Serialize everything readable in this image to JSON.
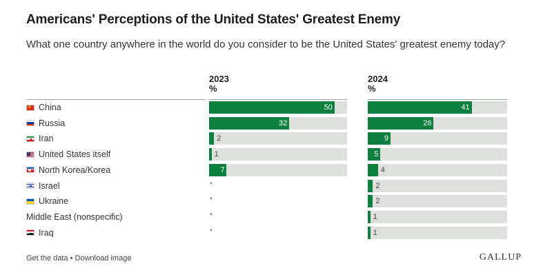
{
  "title": "Americans' Perceptions of the United States' Greatest Enemy",
  "subtitle": "What one country anywhere in the world do you consider to be the United States' greatest enemy today?",
  "columns": [
    {
      "year": "2023",
      "unit": "%"
    },
    {
      "year": "2024",
      "unit": "%"
    }
  ],
  "colors": {
    "bar": "#0d7f3f",
    "track": "#dde0dc"
  },
  "chart_data": {
    "type": "bar",
    "title": "Americans' Perceptions of the United States' Greatest Enemy",
    "categories": [
      "China",
      "Russia",
      "Iran",
      "United States itself",
      "North Korea/Korea",
      "Israel",
      "Ukraine",
      "Middle East (nonspecific)",
      "Iraq"
    ],
    "flags": [
      "china-flag-icon",
      "russia-flag-icon",
      "iran-flag-icon",
      "us-flag-icon",
      "north-korea-flag-icon",
      "israel-flag-icon",
      "ukraine-flag-icon",
      "",
      "iraq-flag-icon"
    ],
    "series": [
      {
        "name": "2023",
        "values": [
          50,
          32,
          2,
          1,
          7,
          null,
          null,
          null,
          null
        ],
        "labels": [
          "50",
          "32",
          "2",
          "1",
          "7",
          "*",
          "*",
          "*",
          "*"
        ]
      },
      {
        "name": "2024",
        "values": [
          41,
          26,
          9,
          5,
          4,
          2,
          2,
          1,
          1
        ],
        "labels": [
          "41",
          "26",
          "9",
          "5",
          "4",
          "2",
          "2",
          "1",
          "1"
        ]
      }
    ],
    "ylim": [
      0,
      55
    ]
  },
  "footer": {
    "get_data": "Get the data",
    "separator": " • ",
    "download": "Download image",
    "logo": "GALLUP"
  }
}
